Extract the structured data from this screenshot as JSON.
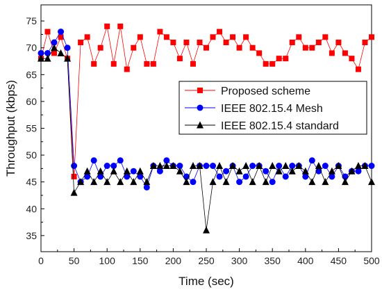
{
  "chart_data": {
    "type": "line",
    "xlabel": "Time (sec)",
    "ylabel": "Throughput (kbps)",
    "xlim": [
      0,
      500
    ],
    "ylim": [
      32,
      78
    ],
    "xticks": [
      0,
      50,
      100,
      150,
      200,
      250,
      300,
      350,
      400,
      450,
      500
    ],
    "yticks": [
      35,
      40,
      45,
      50,
      55,
      60,
      65,
      70,
      75
    ],
    "grid": false,
    "legend_position": "center-right",
    "x": [
      0,
      10,
      20,
      30,
      40,
      50,
      60,
      70,
      80,
      90,
      100,
      110,
      120,
      130,
      140,
      150,
      160,
      170,
      180,
      190,
      200,
      210,
      220,
      230,
      240,
      250,
      260,
      270,
      280,
      290,
      300,
      310,
      320,
      330,
      340,
      350,
      360,
      370,
      380,
      390,
      400,
      410,
      420,
      430,
      440,
      450,
      460,
      470,
      480,
      490,
      500
    ],
    "series": [
      {
        "name": "Proposed scheme",
        "color": "#ff0000",
        "marker": "square",
        "values": [
          68,
          73,
          69,
          72,
          68,
          46,
          71,
          72,
          67,
          70,
          74,
          67,
          74,
          66,
          70,
          72,
          67,
          67,
          73,
          72,
          71,
          68,
          71,
          67,
          71,
          70,
          72,
          73,
          71,
          72,
          70,
          72,
          70,
          69,
          67,
          67,
          68,
          68,
          71,
          72,
          70,
          70,
          71,
          72,
          69,
          71,
          69,
          68,
          66,
          71,
          72
        ]
      },
      {
        "name": "IEEE 802.15.4 Mesh",
        "color": "#0000ff",
        "marker": "circle",
        "values": [
          69,
          69,
          71,
          73,
          70,
          48,
          45,
          46,
          49,
          46,
          48,
          48,
          49,
          46,
          47,
          46,
          44,
          48,
          47,
          49,
          48,
          48,
          46,
          45,
          48,
          48,
          48,
          46,
          47,
          48,
          45,
          46,
          48,
          48,
          47,
          45,
          48,
          46,
          48,
          48,
          46,
          49,
          47,
          48,
          46,
          48,
          46,
          47,
          47,
          48,
          48
        ]
      },
      {
        "name": "IEEE 802.15.4 standard",
        "color": "#000000",
        "marker": "triangle",
        "values": [
          68,
          68,
          70,
          69,
          68,
          43,
          45,
          47,
          45,
          47,
          45,
          47,
          45,
          47,
          45,
          47,
          45,
          48,
          48,
          48,
          48,
          47,
          45,
          48,
          48,
          36,
          45,
          48,
          45,
          48,
          47,
          48,
          45,
          48,
          45,
          48,
          47,
          48,
          47,
          48,
          47,
          45,
          48,
          45,
          47,
          48,
          45,
          47,
          48,
          48,
          45
        ]
      }
    ]
  }
}
